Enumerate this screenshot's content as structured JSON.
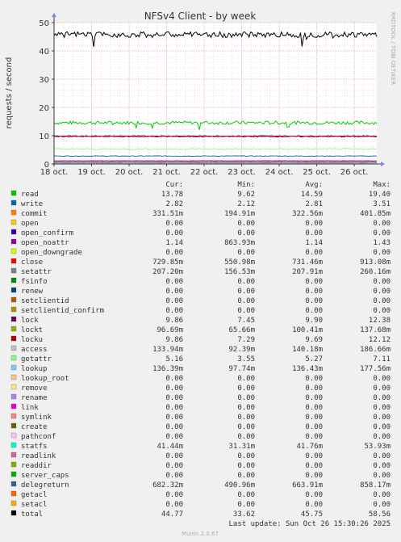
{
  "chart_data": {
    "type": "line",
    "title": "NFSv4 Client - by week",
    "ylabel": "requests / second",
    "side_text": "RRDTOOL / TOBI OETIKER",
    "ylim": [
      0,
      50
    ],
    "yticks": [
      0,
      10,
      20,
      30,
      40,
      50
    ],
    "xlim": [
      0,
      8.6
    ],
    "x_ticks": [
      "18 oct.",
      "19 oct.",
      "20 oct.",
      "21 oct.",
      "22 oct.",
      "23 oct.",
      "24 oct.",
      "25 oct.",
      "26 oct."
    ],
    "grid": true,
    "legend_headers": [
      "Cur:",
      "Min:",
      "Avg:",
      "Max:"
    ],
    "series": [
      {
        "name": "read",
        "color": "#00cc00",
        "stats": [
          "13.78",
          "9.62",
          "14.59",
          "19.40"
        ],
        "avg": 14.59,
        "jitter": 0.6
      },
      {
        "name": "write",
        "color": "#0066b3",
        "stats": [
          "2.82",
          "2.12",
          "2.81",
          "3.51"
        ],
        "avg": 2.81,
        "jitter": 0.1
      },
      {
        "name": "commit",
        "color": "#ff8000",
        "stats": [
          "331.51m",
          "194.91m",
          "322.56m",
          "401.85m"
        ],
        "avg": 0.32,
        "jitter": 0.03
      },
      {
        "name": "open",
        "color": "#ffcc00",
        "stats": [
          "0.00",
          "0.00",
          "0.00",
          "0.00"
        ],
        "avg": 0,
        "jitter": 0
      },
      {
        "name": "open_confirm",
        "color": "#330099",
        "stats": [
          "0.00",
          "0.00",
          "0.00",
          "0.00"
        ],
        "avg": 0,
        "jitter": 0
      },
      {
        "name": "open_noattr",
        "color": "#990099",
        "stats": [
          "1.14",
          "863.93m",
          "1.14",
          "1.43"
        ],
        "avg": 1.14,
        "jitter": 0.05
      },
      {
        "name": "open_downgrade",
        "color": "#ccff00",
        "stats": [
          "0.00",
          "0.00",
          "0.00",
          "0.00"
        ],
        "avg": 0,
        "jitter": 0
      },
      {
        "name": "close",
        "color": "#ff0000",
        "stats": [
          "729.85m",
          "550.98m",
          "731.46m",
          "913.08m"
        ],
        "avg": 0.73,
        "jitter": 0.05
      },
      {
        "name": "setattr",
        "color": "#808080",
        "stats": [
          "207.20m",
          "156.53m",
          "207.91m",
          "260.16m"
        ],
        "avg": 0.21,
        "jitter": 0.02
      },
      {
        "name": "fsinfo",
        "color": "#008f00",
        "stats": [
          "0.00",
          "0.00",
          "0.00",
          "0.00"
        ],
        "avg": 0,
        "jitter": 0
      },
      {
        "name": "renew",
        "color": "#00487d",
        "stats": [
          "0.00",
          "0.00",
          "0.00",
          "0.00"
        ],
        "avg": 0,
        "jitter": 0
      },
      {
        "name": "setclientid",
        "color": "#b35a00",
        "stats": [
          "0.00",
          "0.00",
          "0.00",
          "0.00"
        ],
        "avg": 0,
        "jitter": 0
      },
      {
        "name": "setclientid_confirm",
        "color": "#b38f00",
        "stats": [
          "0.00",
          "0.00",
          "0.00",
          "0.00"
        ],
        "avg": 0,
        "jitter": 0
      },
      {
        "name": "lock",
        "color": "#6b006b",
        "stats": [
          "9.86",
          "7.45",
          "9.90",
          "12.38"
        ],
        "avg": 9.9,
        "jitter": 0.15
      },
      {
        "name": "lockt",
        "color": "#8fb300",
        "stats": [
          "96.69m",
          "65.66m",
          "100.41m",
          "137.68m"
        ],
        "avg": 0.1,
        "jitter": 0.01
      },
      {
        "name": "locku",
        "color": "#b30000",
        "stats": [
          "9.86",
          "7.29",
          "9.69",
          "12.12"
        ],
        "avg": 9.69,
        "jitter": 0.15
      },
      {
        "name": "access",
        "color": "#bebebe",
        "stats": [
          "133.94m",
          "92.39m",
          "140.18m",
          "186.66m"
        ],
        "avg": 0.14,
        "jitter": 0.01
      },
      {
        "name": "getattr",
        "color": "#80ff80",
        "stats": [
          "5.16",
          "3.55",
          "5.27",
          "7.11"
        ],
        "avg": 5.27,
        "jitter": 0.25
      },
      {
        "name": "lookup",
        "color": "#80c9ff",
        "stats": [
          "136.39m",
          "97.74m",
          "136.43m",
          "177.56m"
        ],
        "avg": 0.14,
        "jitter": 0.01
      },
      {
        "name": "lookup_root",
        "color": "#ffc080",
        "stats": [
          "0.00",
          "0.00",
          "0.00",
          "0.00"
        ],
        "avg": 0,
        "jitter": 0
      },
      {
        "name": "remove",
        "color": "#ffe680",
        "stats": [
          "0.00",
          "0.00",
          "0.00",
          "0.00"
        ],
        "avg": 0,
        "jitter": 0
      },
      {
        "name": "rename",
        "color": "#aa80ff",
        "stats": [
          "0.00",
          "0.00",
          "0.00",
          "0.00"
        ],
        "avg": 0,
        "jitter": 0
      },
      {
        "name": "link",
        "color": "#ee00cc",
        "stats": [
          "0.00",
          "0.00",
          "0.00",
          "0.00"
        ],
        "avg": 0,
        "jitter": 0
      },
      {
        "name": "symlink",
        "color": "#ff8080",
        "stats": [
          "0.00",
          "0.00",
          "0.00",
          "0.00"
        ],
        "avg": 0,
        "jitter": 0
      },
      {
        "name": "create",
        "color": "#666600",
        "stats": [
          "0.00",
          "0.00",
          "0.00",
          "0.00"
        ],
        "avg": 0,
        "jitter": 0
      },
      {
        "name": "pathconf",
        "color": "#ffbfff",
        "stats": [
          "0.00",
          "0.00",
          "0.00",
          "0.00"
        ],
        "avg": 0,
        "jitter": 0
      },
      {
        "name": "statfs",
        "color": "#00ffcc",
        "stats": [
          "41.44m",
          "31.31m",
          "41.76m",
          "53.93m"
        ],
        "avg": 0.04,
        "jitter": 0.005
      },
      {
        "name": "readlink",
        "color": "#cc6699",
        "stats": [
          "0.00",
          "0.00",
          "0.00",
          "0.00"
        ],
        "avg": 0,
        "jitter": 0
      },
      {
        "name": "readdir",
        "color": "#80b300",
        "stats": [
          "0.00",
          "0.00",
          "0.00",
          "0.00"
        ],
        "avg": 0,
        "jitter": 0
      },
      {
        "name": "server_caps",
        "color": "#00b300",
        "stats": [
          "0.00",
          "0.00",
          "0.00",
          "0.00"
        ],
        "avg": 0,
        "jitter": 0
      },
      {
        "name": "delegreturn",
        "color": "#336699",
        "stats": [
          "682.32m",
          "490.96m",
          "663.91m",
          "858.17m"
        ],
        "avg": 0.66,
        "jitter": 0.04
      },
      {
        "name": "getacl",
        "color": "#ff6600",
        "stats": [
          "0.00",
          "0.00",
          "0.00",
          "0.00"
        ],
        "avg": 0,
        "jitter": 0
      },
      {
        "name": "setacl",
        "color": "#ffaa00",
        "stats": [
          "0.00",
          "0.00",
          "0.00",
          "0.00"
        ],
        "avg": 0,
        "jitter": 0
      },
      {
        "name": "total",
        "color": "#000000",
        "stats": [
          "44.77",
          "33.62",
          "45.75",
          "58.56"
        ],
        "avg": 45.75,
        "jitter": 1.0
      }
    ],
    "last_update": "Last update: Sun Oct 26 15:30:26 2025",
    "footer": "Munin 2.0.67"
  }
}
